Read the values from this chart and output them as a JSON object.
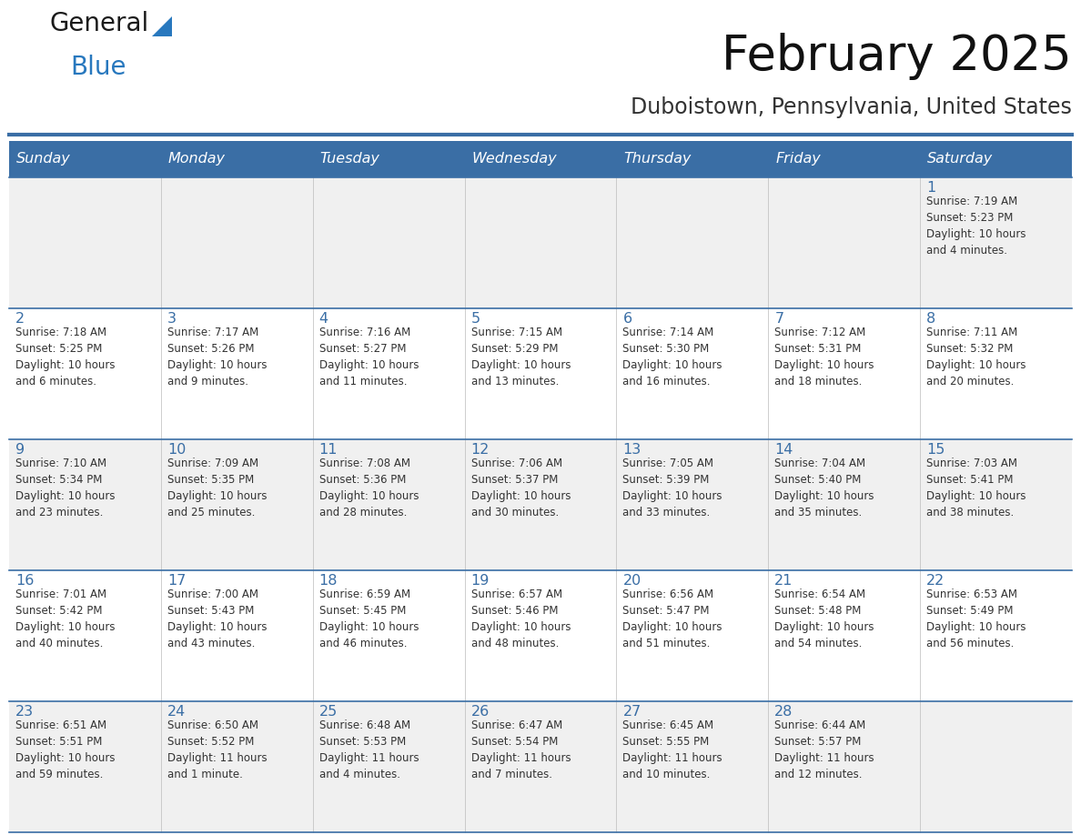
{
  "title": "February 2025",
  "subtitle": "Duboistown, Pennsylvania, United States",
  "header_bg": "#3a6ea5",
  "header_text_color": "#ffffff",
  "day_names": [
    "Sunday",
    "Monday",
    "Tuesday",
    "Wednesday",
    "Thursday",
    "Friday",
    "Saturday"
  ],
  "odd_row_bg": "#f0f0f0",
  "even_row_bg": "#ffffff",
  "cell_border_color": "#3a6ea5",
  "day_number_color": "#3a6ea5",
  "text_color": "#333333",
  "logo_general_color": "#1a1a1a",
  "logo_blue_color": "#2878be",
  "weeks": [
    [
      {
        "day": 0,
        "info": ""
      },
      {
        "day": 0,
        "info": ""
      },
      {
        "day": 0,
        "info": ""
      },
      {
        "day": 0,
        "info": ""
      },
      {
        "day": 0,
        "info": ""
      },
      {
        "day": 0,
        "info": ""
      },
      {
        "day": 1,
        "info": "Sunrise: 7:19 AM\nSunset: 5:23 PM\nDaylight: 10 hours\nand 4 minutes."
      }
    ],
    [
      {
        "day": 2,
        "info": "Sunrise: 7:18 AM\nSunset: 5:25 PM\nDaylight: 10 hours\nand 6 minutes."
      },
      {
        "day": 3,
        "info": "Sunrise: 7:17 AM\nSunset: 5:26 PM\nDaylight: 10 hours\nand 9 minutes."
      },
      {
        "day": 4,
        "info": "Sunrise: 7:16 AM\nSunset: 5:27 PM\nDaylight: 10 hours\nand 11 minutes."
      },
      {
        "day": 5,
        "info": "Sunrise: 7:15 AM\nSunset: 5:29 PM\nDaylight: 10 hours\nand 13 minutes."
      },
      {
        "day": 6,
        "info": "Sunrise: 7:14 AM\nSunset: 5:30 PM\nDaylight: 10 hours\nand 16 minutes."
      },
      {
        "day": 7,
        "info": "Sunrise: 7:12 AM\nSunset: 5:31 PM\nDaylight: 10 hours\nand 18 minutes."
      },
      {
        "day": 8,
        "info": "Sunrise: 7:11 AM\nSunset: 5:32 PM\nDaylight: 10 hours\nand 20 minutes."
      }
    ],
    [
      {
        "day": 9,
        "info": "Sunrise: 7:10 AM\nSunset: 5:34 PM\nDaylight: 10 hours\nand 23 minutes."
      },
      {
        "day": 10,
        "info": "Sunrise: 7:09 AM\nSunset: 5:35 PM\nDaylight: 10 hours\nand 25 minutes."
      },
      {
        "day": 11,
        "info": "Sunrise: 7:08 AM\nSunset: 5:36 PM\nDaylight: 10 hours\nand 28 minutes."
      },
      {
        "day": 12,
        "info": "Sunrise: 7:06 AM\nSunset: 5:37 PM\nDaylight: 10 hours\nand 30 minutes."
      },
      {
        "day": 13,
        "info": "Sunrise: 7:05 AM\nSunset: 5:39 PM\nDaylight: 10 hours\nand 33 minutes."
      },
      {
        "day": 14,
        "info": "Sunrise: 7:04 AM\nSunset: 5:40 PM\nDaylight: 10 hours\nand 35 minutes."
      },
      {
        "day": 15,
        "info": "Sunrise: 7:03 AM\nSunset: 5:41 PM\nDaylight: 10 hours\nand 38 minutes."
      }
    ],
    [
      {
        "day": 16,
        "info": "Sunrise: 7:01 AM\nSunset: 5:42 PM\nDaylight: 10 hours\nand 40 minutes."
      },
      {
        "day": 17,
        "info": "Sunrise: 7:00 AM\nSunset: 5:43 PM\nDaylight: 10 hours\nand 43 minutes."
      },
      {
        "day": 18,
        "info": "Sunrise: 6:59 AM\nSunset: 5:45 PM\nDaylight: 10 hours\nand 46 minutes."
      },
      {
        "day": 19,
        "info": "Sunrise: 6:57 AM\nSunset: 5:46 PM\nDaylight: 10 hours\nand 48 minutes."
      },
      {
        "day": 20,
        "info": "Sunrise: 6:56 AM\nSunset: 5:47 PM\nDaylight: 10 hours\nand 51 minutes."
      },
      {
        "day": 21,
        "info": "Sunrise: 6:54 AM\nSunset: 5:48 PM\nDaylight: 10 hours\nand 54 minutes."
      },
      {
        "day": 22,
        "info": "Sunrise: 6:53 AM\nSunset: 5:49 PM\nDaylight: 10 hours\nand 56 minutes."
      }
    ],
    [
      {
        "day": 23,
        "info": "Sunrise: 6:51 AM\nSunset: 5:51 PM\nDaylight: 10 hours\nand 59 minutes."
      },
      {
        "day": 24,
        "info": "Sunrise: 6:50 AM\nSunset: 5:52 PM\nDaylight: 11 hours\nand 1 minute."
      },
      {
        "day": 25,
        "info": "Sunrise: 6:48 AM\nSunset: 5:53 PM\nDaylight: 11 hours\nand 4 minutes."
      },
      {
        "day": 26,
        "info": "Sunrise: 6:47 AM\nSunset: 5:54 PM\nDaylight: 11 hours\nand 7 minutes."
      },
      {
        "day": 27,
        "info": "Sunrise: 6:45 AM\nSunset: 5:55 PM\nDaylight: 11 hours\nand 10 minutes."
      },
      {
        "day": 28,
        "info": "Sunrise: 6:44 AM\nSunset: 5:57 PM\nDaylight: 11 hours\nand 12 minutes."
      },
      {
        "day": 0,
        "info": ""
      }
    ]
  ]
}
